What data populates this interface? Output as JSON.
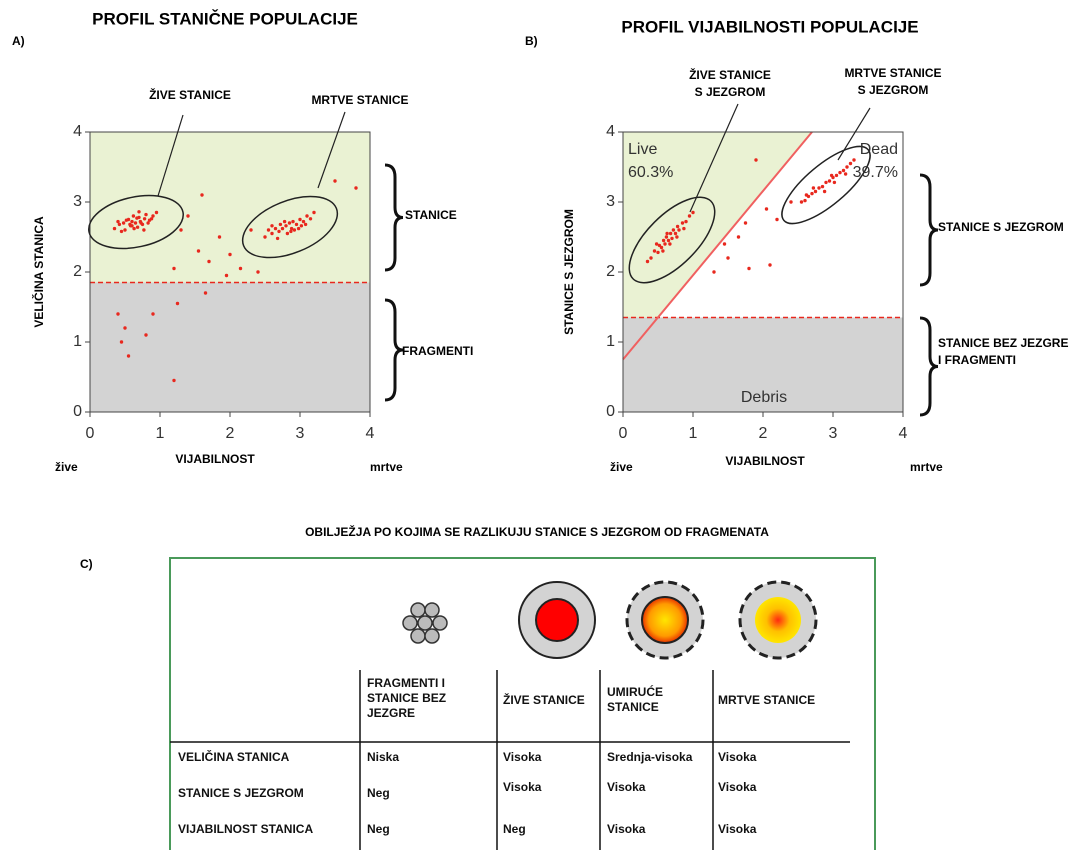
{
  "panel_labels": [
    "A)",
    "B)",
    "C)"
  ],
  "chart_data": [
    {
      "type": "scatter",
      "title": "PROFIL STANIČNE POPULACIJE",
      "xlabel": "VIJABILNOST",
      "ylabel": "VELIČINA STANICA",
      "x_end_labels": [
        "žive",
        "mrtve"
      ],
      "xlim": [
        0,
        4
      ],
      "ylim": [
        0,
        4
      ],
      "xticks": [
        0,
        1,
        2,
        3,
        4
      ],
      "yticks": [
        0,
        1,
        2,
        3,
        4
      ],
      "color": "#e8281e",
      "threshold": 1.85,
      "region_colors": {
        "upper": "#eaf2d3",
        "lower": "#d3d3d3"
      },
      "annotations": [
        [
          "ŽIVE STANICE"
        ],
        [
          "MRTVE STANICE"
        ]
      ],
      "brace_labels": [
        [
          "STANICE"
        ],
        [
          "FRAGMENTI"
        ]
      ],
      "x": [
        0.35,
        0.42,
        0.48,
        0.5,
        0.55,
        0.58,
        0.6,
        0.62,
        0.65,
        0.68,
        0.7,
        0.72,
        0.75,
        0.78,
        0.8,
        0.85,
        0.9,
        0.95,
        0.45,
        0.52,
        0.63,
        0.67,
        0.73,
        0.83,
        0.57,
        0.7,
        0.88,
        0.4,
        0.6,
        0.77,
        2.5,
        2.55,
        2.6,
        2.65,
        2.7,
        2.72,
        2.75,
        2.8,
        2.82,
        2.85,
        2.88,
        2.9,
        2.92,
        2.95,
        3.0,
        3.02,
        3.05,
        3.1,
        3.15,
        3.2,
        2.68,
        2.78,
        2.98,
        3.08,
        2.6,
        2.87,
        1.2,
        1.4,
        1.55,
        1.7,
        1.85,
        2.0,
        2.15,
        2.3,
        1.3,
        1.95,
        3.5,
        3.8,
        1.6,
        2.4,
        0.4,
        0.5,
        0.55,
        0.8,
        0.9,
        1.2,
        1.25,
        0.45,
        1.65
      ],
      "values": [
        2.62,
        2.68,
        2.7,
        2.6,
        2.75,
        2.66,
        2.72,
        2.8,
        2.7,
        2.64,
        2.78,
        2.72,
        2.68,
        2.76,
        2.82,
        2.74,
        2.8,
        2.85,
        2.58,
        2.74,
        2.62,
        2.77,
        2.7,
        2.7,
        2.68,
        2.86,
        2.76,
        2.72,
        2.66,
        2.6,
        2.5,
        2.6,
        2.55,
        2.62,
        2.58,
        2.68,
        2.62,
        2.66,
        2.55,
        2.7,
        2.62,
        2.72,
        2.6,
        2.68,
        2.75,
        2.66,
        2.72,
        2.8,
        2.76,
        2.85,
        2.48,
        2.72,
        2.62,
        2.68,
        2.66,
        2.58,
        2.05,
        2.8,
        2.3,
        2.15,
        2.5,
        2.25,
        2.05,
        2.6,
        2.6,
        1.95,
        3.3,
        3.2,
        3.1,
        2.0,
        1.4,
        1.2,
        0.8,
        1.1,
        1.4,
        0.45,
        1.55,
        1.0,
        1.7
      ]
    },
    {
      "type": "scatter",
      "title": "PROFIL VIJABILNOSTI POPULACIJE",
      "xlabel": "VIJABILNOST",
      "ylabel": "STANICE S JEZGROM",
      "x_end_labels": [
        "žive",
        "mrtve"
      ],
      "xlim": [
        0,
        4
      ],
      "ylim": [
        0,
        4
      ],
      "xticks": [
        0,
        1,
        2,
        3,
        4
      ],
      "yticks": [
        0,
        1,
        2,
        3,
        4
      ],
      "color": "#e8281e",
      "threshold": 1.35,
      "region_colors": {
        "upper": "#eaf2d3",
        "lower": "#d3d3d3"
      },
      "gate_line": {
        "x": [
          0,
          2.7
        ],
        "values": [
          0.75,
          4
        ]
      },
      "region_labels": [
        "Live",
        "60.3%",
        "Dead",
        "39.7%",
        "Debris"
      ],
      "annotations": [
        [
          "ŽIVE STANICE",
          "S JEZGROM"
        ],
        [
          "MRTVE STANICE",
          "S JEZGROM"
        ]
      ],
      "brace_labels": [
        [
          "STANICE S JEZGROM"
        ],
        [
          "STANICE BEZ JEZGRE",
          "I FRAGMENTI"
        ]
      ],
      "x": [
        0.35,
        0.4,
        0.45,
        0.5,
        0.52,
        0.55,
        0.58,
        0.6,
        0.62,
        0.65,
        0.68,
        0.7,
        0.72,
        0.75,
        0.78,
        0.8,
        0.85,
        0.9,
        0.95,
        1.0,
        0.48,
        0.57,
        0.67,
        0.77,
        0.87,
        0.63,
        2.55,
        2.6,
        2.65,
        2.7,
        2.75,
        2.8,
        2.85,
        2.9,
        2.95,
        3.0,
        3.05,
        3.1,
        3.15,
        3.2,
        3.25,
        3.3,
        2.72,
        2.88,
        3.02,
        3.18,
        2.62,
        2.98,
        1.3,
        1.5,
        1.65,
        1.8,
        1.75,
        2.05,
        2.2,
        2.4,
        1.9,
        1.45,
        2.1
      ],
      "values": [
        2.15,
        2.2,
        2.3,
        2.28,
        2.38,
        2.35,
        2.45,
        2.4,
        2.5,
        2.45,
        2.55,
        2.48,
        2.6,
        2.55,
        2.65,
        2.6,
        2.7,
        2.72,
        2.8,
        2.85,
        2.4,
        2.3,
        2.4,
        2.5,
        2.62,
        2.55,
        3.0,
        3.02,
        3.08,
        3.12,
        3.15,
        3.2,
        3.22,
        3.28,
        3.3,
        3.35,
        3.38,
        3.42,
        3.45,
        3.5,
        3.55,
        3.6,
        3.2,
        3.15,
        3.28,
        3.4,
        3.1,
        3.38,
        2.0,
        2.2,
        2.5,
        2.05,
        2.7,
        2.9,
        2.75,
        3.0,
        3.6,
        2.4,
        2.1
      ]
    }
  ],
  "table": {
    "title": "OBILJEŽJA PO KOJIMA SE RAZLIKUJU STANICE S JEZGROM OD FRAGMENATA",
    "columns": [
      "FRAGMENTI I STANICE BEZ JEZGRE",
      "ŽIVE STANICE",
      "UMIRUĆE STANICE",
      "MRTVE STANICE"
    ],
    "rows": [
      [
        "VELIČINA STANICA",
        "Niska",
        "Visoka",
        "Srednja-visoka",
        "Visoka"
      ],
      [
        "STANICE S JEZGROM",
        "Neg",
        "Visoka",
        "Visoka",
        "Visoka"
      ],
      [
        "VIJABILNOST STANICA",
        "Neg",
        "Neg",
        "Visoka",
        "Visoka"
      ]
    ]
  }
}
